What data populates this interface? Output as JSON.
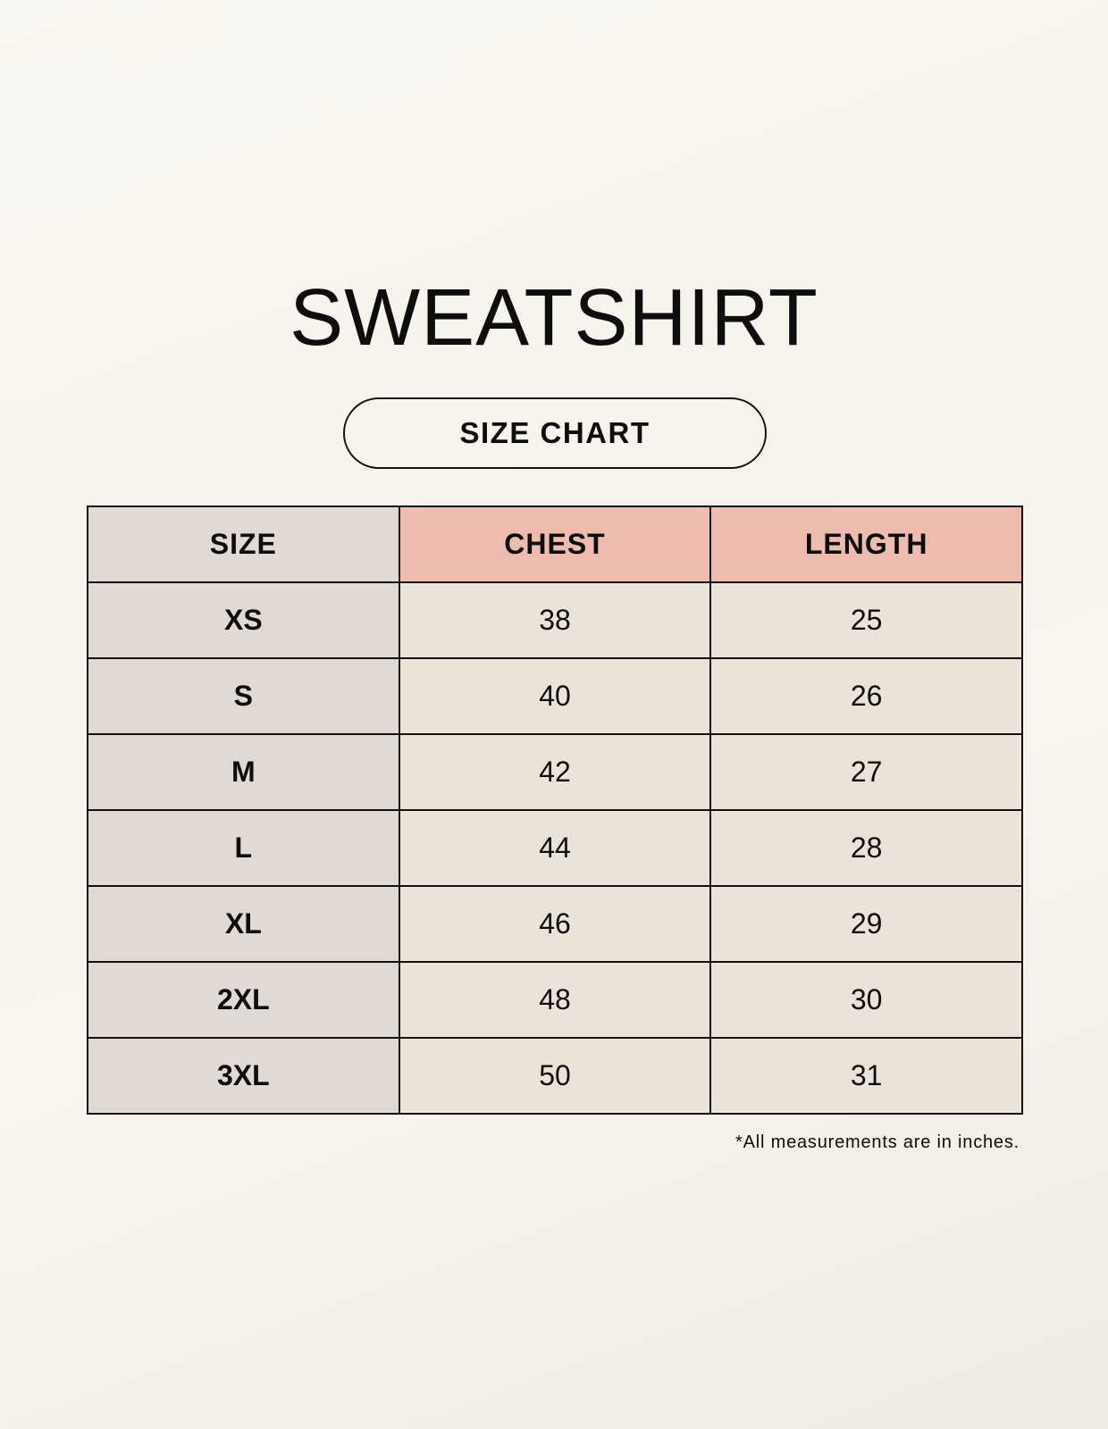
{
  "title": "SWEATSHIRT",
  "subtitle": "SIZE CHART",
  "table": {
    "headers": [
      "SIZE",
      "CHEST",
      "LENGTH"
    ],
    "rows": [
      [
        "XS",
        "38",
        "25"
      ],
      [
        "S",
        "40",
        "26"
      ],
      [
        "M",
        "42",
        "27"
      ],
      [
        "L",
        "44",
        "28"
      ],
      [
        "XL",
        "46",
        "29"
      ],
      [
        "2XL",
        "48",
        "30"
      ],
      [
        "3XL",
        "50",
        "31"
      ]
    ]
  },
  "footnote": "*All measurements are in inches.",
  "colors": {
    "size_column": "#e1d9d4",
    "header_accent": "#edbcae",
    "cell": "#ebe2d8"
  }
}
